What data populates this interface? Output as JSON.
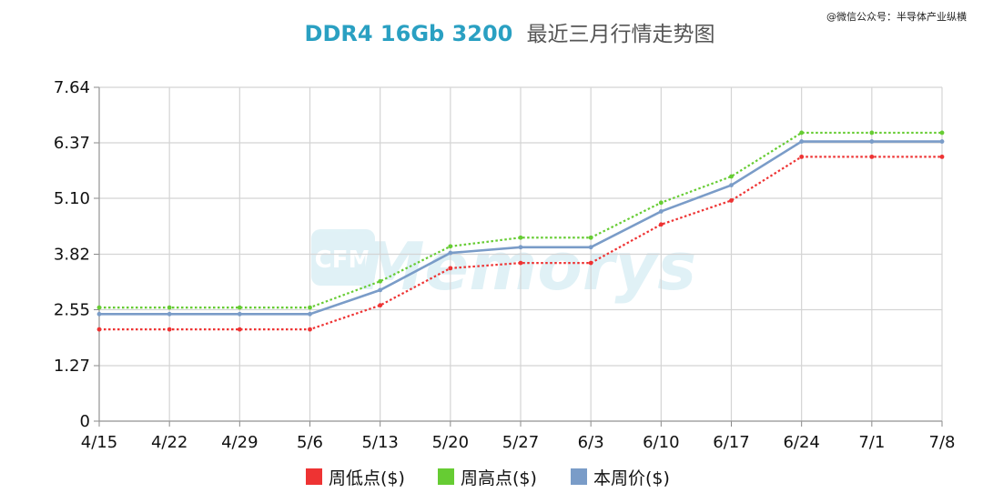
{
  "watermark": "@微信公众号：半导体产业纵横",
  "logo_text": "CFM Memorys",
  "colors": {
    "low": "#ee3333",
    "high": "#66cc33",
    "price": "#7a9cc8",
    "title_accent": "#2aa0c2",
    "title_rest": "#555555",
    "grid": "#d4d4d4"
  },
  "chart_data": {
    "type": "line",
    "title_accent": "DDR4 16Gb 3200",
    "title_rest": "最近三月行情走势图",
    "xlabel": "",
    "ylabel": "",
    "categories": [
      "4/15",
      "4/22",
      "4/29",
      "5/6",
      "5/13",
      "5/20",
      "5/27",
      "6/3",
      "6/10",
      "6/17",
      "6/24",
      "7/1",
      "7/8"
    ],
    "y_ticks": [
      "0",
      "1.27",
      "2.55",
      "3.82",
      "5.10",
      "6.37",
      "7.64"
    ],
    "ylim": [
      0,
      7.64
    ],
    "grid": true,
    "legend_position": "bottom",
    "series": [
      {
        "name": "周低点($)",
        "key": "low",
        "style": "dotted",
        "values": [
          2.1,
          2.1,
          2.1,
          2.1,
          2.65,
          3.5,
          3.62,
          3.62,
          4.5,
          5.05,
          6.05,
          6.05,
          6.05
        ]
      },
      {
        "name": "周高点($)",
        "key": "high",
        "style": "dotted",
        "values": [
          2.6,
          2.6,
          2.6,
          2.6,
          3.2,
          4.0,
          4.2,
          4.2,
          5.0,
          5.6,
          6.6,
          6.6,
          6.6
        ]
      },
      {
        "name": "本周价($)",
        "key": "price",
        "style": "solid",
        "values": [
          2.45,
          2.45,
          2.45,
          2.45,
          3.0,
          3.85,
          3.98,
          3.98,
          4.8,
          5.4,
          6.4,
          6.4,
          6.4
        ]
      }
    ]
  }
}
